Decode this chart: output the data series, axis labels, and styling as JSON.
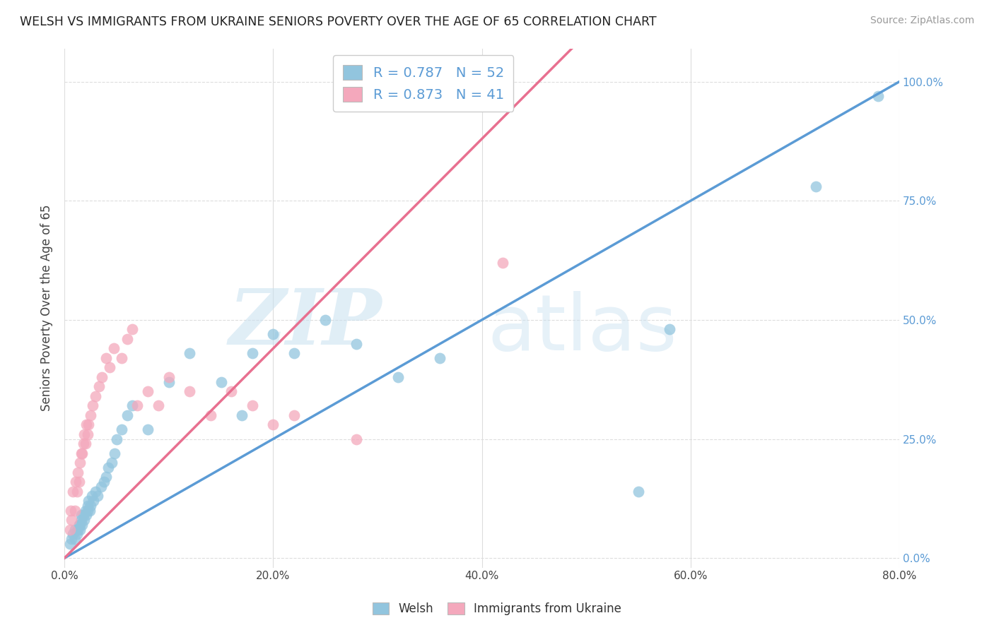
{
  "title": "WELSH VS IMMIGRANTS FROM UKRAINE SENIORS POVERTY OVER THE AGE OF 65 CORRELATION CHART",
  "source": "Source: ZipAtlas.com",
  "ylabel": "Seniors Poverty Over the Age of 65",
  "xlim": [
    0.0,
    0.8
  ],
  "ylim": [
    -0.02,
    1.07
  ],
  "ytick_labels": [
    "0.0%",
    "25.0%",
    "50.0%",
    "75.0%",
    "100.0%"
  ],
  "ytick_values": [
    0.0,
    0.25,
    0.5,
    0.75,
    1.0
  ],
  "welsh_color": "#92C5DE",
  "ukraine_color": "#F4A8BC",
  "welsh_line_color": "#5B9BD5",
  "ukraine_line_color": "#E87090",
  "background_color": "#FFFFFF",
  "grid_color": "#DDDDDD",
  "legend_R_welsh": "0.787",
  "legend_N_welsh": "52",
  "legend_R_ukraine": "0.873",
  "legend_N_ukraine": "41",
  "welsh_scatter_x": [
    0.005,
    0.007,
    0.008,
    0.01,
    0.01,
    0.012,
    0.013,
    0.014,
    0.015,
    0.015,
    0.016,
    0.016,
    0.017,
    0.018,
    0.019,
    0.02,
    0.021,
    0.022,
    0.022,
    0.023,
    0.024,
    0.025,
    0.026,
    0.028,
    0.03,
    0.032,
    0.035,
    0.038,
    0.04,
    0.042,
    0.045,
    0.048,
    0.05,
    0.055,
    0.06,
    0.065,
    0.08,
    0.1,
    0.12,
    0.15,
    0.17,
    0.18,
    0.2,
    0.22,
    0.25,
    0.28,
    0.32,
    0.36,
    0.55,
    0.58,
    0.72,
    0.78
  ],
  "welsh_scatter_y": [
    0.03,
    0.04,
    0.05,
    0.04,
    0.06,
    0.05,
    0.06,
    0.07,
    0.06,
    0.07,
    0.08,
    0.09,
    0.07,
    0.09,
    0.08,
    0.1,
    0.09,
    0.1,
    0.11,
    0.12,
    0.1,
    0.11,
    0.13,
    0.12,
    0.14,
    0.13,
    0.15,
    0.16,
    0.17,
    0.19,
    0.2,
    0.22,
    0.25,
    0.27,
    0.3,
    0.32,
    0.27,
    0.37,
    0.43,
    0.37,
    0.3,
    0.43,
    0.47,
    0.43,
    0.5,
    0.45,
    0.38,
    0.42,
    0.14,
    0.48,
    0.78,
    0.97
  ],
  "ukraine_scatter_x": [
    0.005,
    0.006,
    0.007,
    0.008,
    0.01,
    0.011,
    0.012,
    0.013,
    0.014,
    0.015,
    0.016,
    0.017,
    0.018,
    0.019,
    0.02,
    0.021,
    0.022,
    0.023,
    0.025,
    0.027,
    0.03,
    0.033,
    0.036,
    0.04,
    0.043,
    0.047,
    0.055,
    0.06,
    0.065,
    0.07,
    0.08,
    0.09,
    0.1,
    0.12,
    0.14,
    0.16,
    0.18,
    0.2,
    0.22,
    0.28,
    0.42
  ],
  "ukraine_scatter_y": [
    0.06,
    0.1,
    0.08,
    0.14,
    0.1,
    0.16,
    0.14,
    0.18,
    0.16,
    0.2,
    0.22,
    0.22,
    0.24,
    0.26,
    0.24,
    0.28,
    0.26,
    0.28,
    0.3,
    0.32,
    0.34,
    0.36,
    0.38,
    0.42,
    0.4,
    0.44,
    0.42,
    0.46,
    0.48,
    0.32,
    0.35,
    0.32,
    0.38,
    0.35,
    0.3,
    0.35,
    0.32,
    0.28,
    0.3,
    0.25,
    0.62
  ],
  "watermark_ZIP": "ZIP",
  "watermark_atlas": "atlas",
  "legend_items": [
    "Welsh",
    "Immigrants from Ukraine"
  ]
}
